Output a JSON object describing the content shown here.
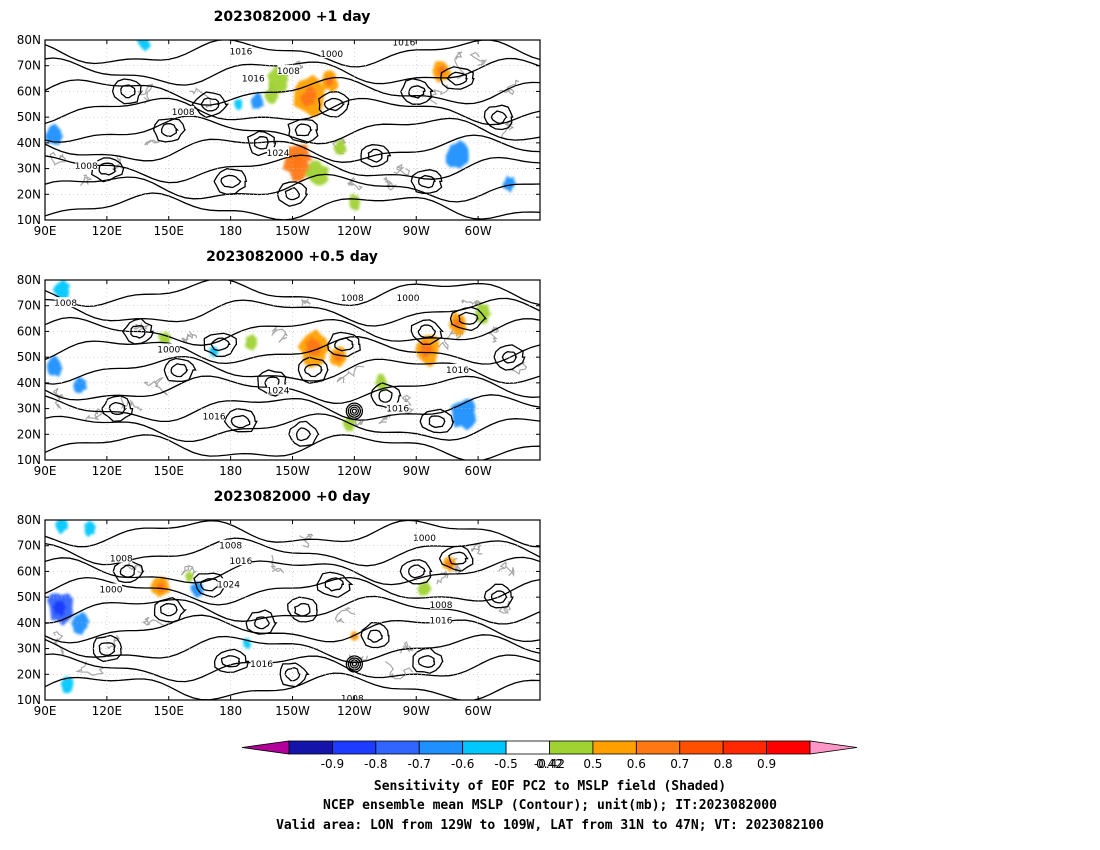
{
  "chart_data": {
    "type": "heatmap",
    "colors": {
      "levels": [
        "#b4009b",
        "#1414aa",
        "#1e3cff",
        "#3264ff",
        "#1e90ff",
        "#00c8ff",
        "#ffffff",
        "#a0d232",
        "#ffa000",
        "#ff7814",
        "#ff5000",
        "#ff2800",
        "#ff0000",
        "#ff96c8"
      ]
    },
    "colorbar": {
      "ticks": [
        "-0.9",
        "-0.8",
        "-0.7",
        "-0.6",
        "-0.5",
        "-0.42",
        "0.42",
        "0.5",
        "0.6",
        "0.7",
        "0.8",
        "0.9"
      ]
    },
    "x_ticks": [
      "90E",
      "120E",
      "150E",
      "180",
      "150W",
      "120W",
      "90W",
      "60W"
    ],
    "y_ticks": [
      "10N",
      "20N",
      "30N",
      "40N",
      "50N",
      "60N",
      "70N",
      "80N"
    ],
    "panels": [
      {
        "title": "2023082000 +1 day",
        "contour_labels": [
          {
            "text": "1016",
            "lon": -175,
            "lat": 75.5
          },
          {
            "text": "1016",
            "lon": -169,
            "lat": 65
          },
          {
            "text": "1008",
            "lon": -152,
            "lat": 68
          },
          {
            "text": "1000",
            "lon": -131,
            "lat": 74.5
          },
          {
            "text": "1016",
            "lon": -96,
            "lat": 79
          },
          {
            "text": "1008",
            "lon": 157,
            "lat": 52
          },
          {
            "text": "1024",
            "lon": -157,
            "lat": 36
          },
          {
            "text": "1008",
            "lon": 110,
            "lat": 31
          }
        ],
        "blobs": [
          {
            "lon": -142,
            "lat": 58,
            "r": 7,
            "v": 0.6
          },
          {
            "lon": -157,
            "lat": 64,
            "r": 5,
            "v": 0.5
          },
          {
            "lon": -148,
            "lat": 33,
            "r": 7,
            "v": 0.7
          },
          {
            "lon": -138,
            "lat": 28,
            "r": 5,
            "v": 0.55
          },
          {
            "lon": -132,
            "lat": 64,
            "r": 4,
            "v": 0.6
          },
          {
            "lon": -78,
            "lat": 68,
            "r": 4,
            "v": 0.65
          },
          {
            "lon": -160,
            "lat": 58,
            "r": 3,
            "v": 0.5
          },
          {
            "lon": -127,
            "lat": 38,
            "r": 3,
            "v": 0.5
          },
          {
            "lon": -120,
            "lat": 17,
            "r": 3,
            "v": 0.55
          },
          {
            "lon": -70,
            "lat": 35,
            "r": 5,
            "v": -0.5
          },
          {
            "lon": -45,
            "lat": 24,
            "r": 3,
            "v": -0.5
          },
          {
            "lon": 94,
            "lat": 43,
            "r": 4,
            "v": -0.5
          },
          {
            "lon": -167,
            "lat": 56,
            "r": 3,
            "v": -0.5
          },
          {
            "lon": -176,
            "lat": 55,
            "r": 2,
            "v": -0.45
          },
          {
            "lon": 138,
            "lat": 79,
            "r": 3,
            "v": -0.45
          }
        ]
      },
      {
        "title": "2023082000 +0.5 day",
        "contour_labels": [
          {
            "text": "1008",
            "lon": -121,
            "lat": 73
          },
          {
            "text": "1000",
            "lon": -94,
            "lat": 73
          },
          {
            "text": "1008",
            "lon": 100,
            "lat": 71
          },
          {
            "text": "1000",
            "lon": 150,
            "lat": 53
          },
          {
            "text": "1016",
            "lon": -70,
            "lat": 45
          },
          {
            "text": "1024",
            "lon": -157,
            "lat": 37
          },
          {
            "text": "1016",
            "lon": 172,
            "lat": 27
          },
          {
            "text": "1016",
            "lon": -99,
            "lat": 30
          }
        ],
        "blobs": [
          {
            "lon": -140,
            "lat": 54,
            "r": 7,
            "v": 0.6
          },
          {
            "lon": -128,
            "lat": 50,
            "r": 4,
            "v": 0.6
          },
          {
            "lon": -85,
            "lat": 53,
            "r": 6,
            "v": 0.65
          },
          {
            "lon": -70,
            "lat": 63,
            "r": 4,
            "v": 0.6
          },
          {
            "lon": -58,
            "lat": 67,
            "r": 4,
            "v": 0.55
          },
          {
            "lon": -107,
            "lat": 40,
            "r": 3,
            "v": 0.55
          },
          {
            "lon": -123,
            "lat": 24,
            "r": 3,
            "v": 0.5
          },
          {
            "lon": -170,
            "lat": 56,
            "r": 3,
            "v": 0.5
          },
          {
            "lon": 148,
            "lat": 57,
            "r": 3,
            "v": 0.5
          },
          {
            "lon": -67,
            "lat": 28,
            "r": 6,
            "v": -0.55
          },
          {
            "lon": 94,
            "lat": 46,
            "r": 4,
            "v": -0.5
          },
          {
            "lon": 98,
            "lat": 76,
            "r": 4,
            "v": -0.45
          },
          {
            "lon": 107,
            "lat": 39,
            "r": 3,
            "v": -0.5
          },
          {
            "lon": -188,
            "lat": 52,
            "r": 2,
            "v": -0.45
          }
        ]
      },
      {
        "title": "2023082000 +0 day",
        "contour_labels": [
          {
            "text": "1008",
            "lon": -180,
            "lat": 70
          },
          {
            "text": "1016",
            "lon": -175,
            "lat": 64
          },
          {
            "text": "1000",
            "lon": -86,
            "lat": 73
          },
          {
            "text": "1008",
            "lon": 127,
            "lat": 65
          },
          {
            "text": "1000",
            "lon": 122,
            "lat": 53
          },
          {
            "text": "1024",
            "lon": -181,
            "lat": 55
          },
          {
            "text": "1008",
            "lon": -78,
            "lat": 47
          },
          {
            "text": "1016",
            "lon": -78,
            "lat": 41
          },
          {
            "text": "1016",
            "lon": -165,
            "lat": 24
          },
          {
            "text": "1008",
            "lon": -121,
            "lat": 10.5
          }
        ],
        "blobs": [
          {
            "lon": 146,
            "lat": 54,
            "r": 4,
            "v": 0.6
          },
          {
            "lon": -74,
            "lat": 63,
            "r": 3,
            "v": 0.6
          },
          {
            "lon": -86,
            "lat": 53,
            "r": 3,
            "v": 0.5
          },
          {
            "lon": -120,
            "lat": 35,
            "r": 2,
            "v": 0.6
          },
          {
            "lon": 160,
            "lat": 58,
            "r": 2,
            "v": 0.5
          },
          {
            "lon": 97,
            "lat": 46,
            "r": 6,
            "v": -0.6
          },
          {
            "lon": 107,
            "lat": 40,
            "r": 4,
            "v": -0.55
          },
          {
            "lon": 98,
            "lat": 78,
            "r": 3,
            "v": -0.45
          },
          {
            "lon": 112,
            "lat": 77,
            "r": 3,
            "v": -0.45
          },
          {
            "lon": 164,
            "lat": 53,
            "r": 3,
            "v": -0.5
          },
          {
            "lon": 101,
            "lat": 16,
            "r": 3,
            "v": -0.45
          },
          {
            "lon": -172,
            "lat": 32,
            "r": 2,
            "v": -0.45
          }
        ]
      }
    ],
    "caption": [
      "Sensitivity of EOF PC2 to MSLP field (Shaded)",
      "NCEP ensemble mean MSLP (Contour); unit(mb); IT:2023082000",
      "Valid area: LON from 129W to 109W, LAT from 31N to 47N; VT: 2023082100"
    ]
  }
}
